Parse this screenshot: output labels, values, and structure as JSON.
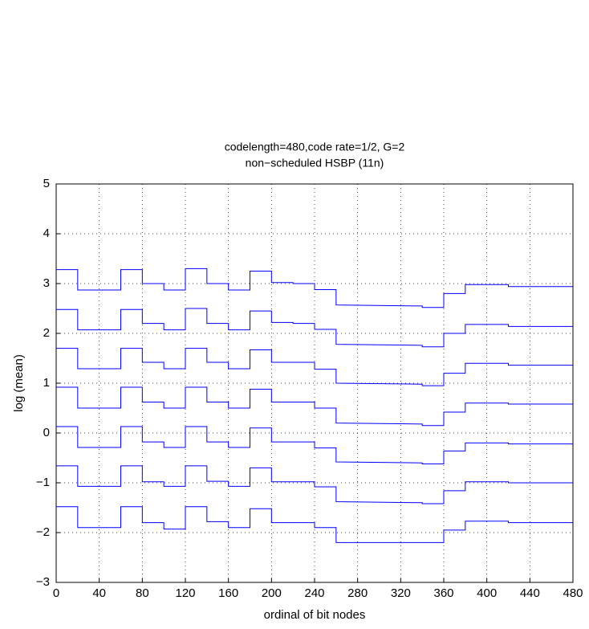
{
  "chart_data": {
    "type": "line",
    "title": [
      "codelength=480,code rate=1/2, G=2",
      "non−scheduled HSBP (11n)"
    ],
    "xlabel": "ordinal of bit nodes",
    "ylabel": "log (mean)",
    "x": [
      0,
      20,
      20,
      60,
      60,
      80,
      80,
      100,
      100,
      120,
      120,
      140,
      140,
      160,
      160,
      180,
      180,
      200,
      200,
      220,
      220,
      240,
      240,
      260,
      260,
      340,
      340,
      360,
      360,
      380,
      380,
      420,
      420,
      480
    ],
    "series": [
      {
        "color": "#0000ff",
        "values": [
          3.28,
          3.28,
          2.87,
          2.87,
          3.28,
          3.28,
          3.0,
          3.0,
          2.87,
          2.87,
          3.3,
          3.3,
          3.0,
          3.0,
          2.87,
          2.87,
          3.25,
          3.25,
          3.02,
          3.02,
          3.0,
          3.0,
          2.88,
          2.88,
          2.57,
          2.55,
          2.52,
          2.52,
          2.8,
          2.8,
          2.98,
          2.98,
          2.94,
          2.94
        ]
      },
      {
        "color": "#0000ff",
        "values": [
          2.48,
          2.48,
          2.07,
          2.07,
          2.48,
          2.48,
          2.2,
          2.2,
          2.07,
          2.07,
          2.5,
          2.5,
          2.2,
          2.2,
          2.07,
          2.07,
          2.45,
          2.45,
          2.22,
          2.22,
          2.2,
          2.2,
          2.08,
          2.08,
          1.78,
          1.76,
          1.73,
          1.73,
          2.0,
          2.0,
          2.18,
          2.18,
          2.14,
          2.14
        ]
      },
      {
        "color": "#0000ff",
        "values": [
          1.7,
          1.7,
          1.29,
          1.29,
          1.7,
          1.7,
          1.42,
          1.42,
          1.29,
          1.29,
          1.7,
          1.7,
          1.42,
          1.42,
          1.29,
          1.29,
          1.67,
          1.67,
          1.42,
          1.42,
          1.42,
          1.42,
          1.28,
          1.28,
          1.0,
          0.98,
          0.95,
          0.95,
          1.2,
          1.2,
          1.4,
          1.4,
          1.36,
          1.36
        ]
      },
      {
        "color": "#0000ff",
        "values": [
          0.92,
          0.92,
          0.5,
          0.5,
          0.92,
          0.92,
          0.62,
          0.62,
          0.5,
          0.5,
          0.92,
          0.92,
          0.62,
          0.62,
          0.5,
          0.5,
          0.88,
          0.88,
          0.62,
          0.62,
          0.62,
          0.62,
          0.5,
          0.5,
          0.2,
          0.18,
          0.15,
          0.15,
          0.42,
          0.42,
          0.6,
          0.6,
          0.58,
          0.58
        ]
      },
      {
        "color": "#0000ff",
        "values": [
          0.13,
          0.13,
          -0.29,
          -0.29,
          0.13,
          0.13,
          -0.18,
          -0.18,
          -0.29,
          -0.29,
          0.13,
          0.13,
          -0.18,
          -0.18,
          -0.29,
          -0.29,
          0.1,
          0.1,
          -0.18,
          -0.18,
          -0.18,
          -0.18,
          -0.3,
          -0.3,
          -0.58,
          -0.6,
          -0.62,
          -0.62,
          -0.36,
          -0.36,
          -0.2,
          -0.2,
          -0.22,
          -0.22
        ]
      },
      {
        "color": "#0000ff",
        "values": [
          -0.66,
          -0.66,
          -1.07,
          -1.07,
          -0.66,
          -0.66,
          -0.98,
          -0.98,
          -1.07,
          -1.07,
          -0.66,
          -0.66,
          -0.97,
          -0.97,
          -1.07,
          -1.07,
          -0.7,
          -0.7,
          -0.98,
          -0.98,
          -0.98,
          -0.98,
          -1.08,
          -1.08,
          -1.38,
          -1.4,
          -1.42,
          -1.42,
          -1.16,
          -1.16,
          -0.98,
          -0.98,
          -1.0,
          -1.0
        ]
      },
      {
        "color": "#0000ff",
        "values": [
          -1.48,
          -1.48,
          -1.9,
          -1.9,
          -1.48,
          -1.48,
          -1.8,
          -1.8,
          -1.93,
          -1.93,
          -1.48,
          -1.48,
          -1.78,
          -1.78,
          -1.9,
          -1.9,
          -1.52,
          -1.52,
          -1.8,
          -1.8,
          -1.8,
          -1.8,
          -1.9,
          -1.9,
          -2.2,
          -2.2,
          -2.2,
          -2.2,
          -1.95,
          -1.95,
          -1.77,
          -1.77,
          -1.8,
          -1.8
        ]
      }
    ],
    "xlim": [
      0,
      480
    ],
    "xticks": [
      0,
      40,
      80,
      120,
      160,
      200,
      240,
      280,
      320,
      360,
      400,
      440,
      480
    ],
    "ylim": [
      -3,
      5
    ],
    "yticks": [
      {
        "value": -3,
        "label": "−3"
      },
      {
        "value": -2,
        "label": "−2"
      },
      {
        "value": -1,
        "label": "−1"
      },
      0,
      1,
      2,
      3,
      4,
      5
    ],
    "grid": true
  }
}
